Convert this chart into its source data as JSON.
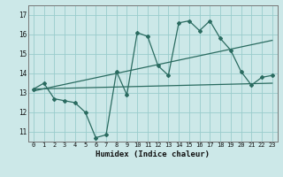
{
  "title": "",
  "xlabel": "Humidex (Indice chaleur)",
  "bg_color": "#cce8e8",
  "line_color": "#2a6b60",
  "grid_color": "#99cccc",
  "xlim": [
    -0.5,
    23.5
  ],
  "ylim": [
    10.5,
    17.5
  ],
  "xticks": [
    0,
    1,
    2,
    3,
    4,
    5,
    6,
    7,
    8,
    9,
    10,
    11,
    12,
    13,
    14,
    15,
    16,
    17,
    18,
    19,
    20,
    21,
    22,
    23
  ],
  "yticks": [
    11,
    12,
    13,
    14,
    15,
    16,
    17
  ],
  "data_x": [
    0,
    1,
    2,
    3,
    4,
    5,
    6,
    7,
    8,
    9,
    10,
    11,
    12,
    13,
    14,
    15,
    16,
    17,
    18,
    19,
    20,
    21,
    22,
    23
  ],
  "data_y": [
    13.2,
    13.5,
    12.7,
    12.6,
    12.5,
    12.0,
    10.7,
    10.85,
    14.1,
    12.9,
    16.1,
    15.9,
    14.4,
    13.9,
    16.6,
    16.7,
    16.2,
    16.7,
    15.8,
    15.2,
    14.1,
    13.4,
    13.8,
    13.9
  ],
  "trend1_x": [
    0,
    23
  ],
  "trend1_y": [
    13.2,
    13.5
  ],
  "trend2_x": [
    0,
    23
  ],
  "trend2_y": [
    13.1,
    15.7
  ]
}
